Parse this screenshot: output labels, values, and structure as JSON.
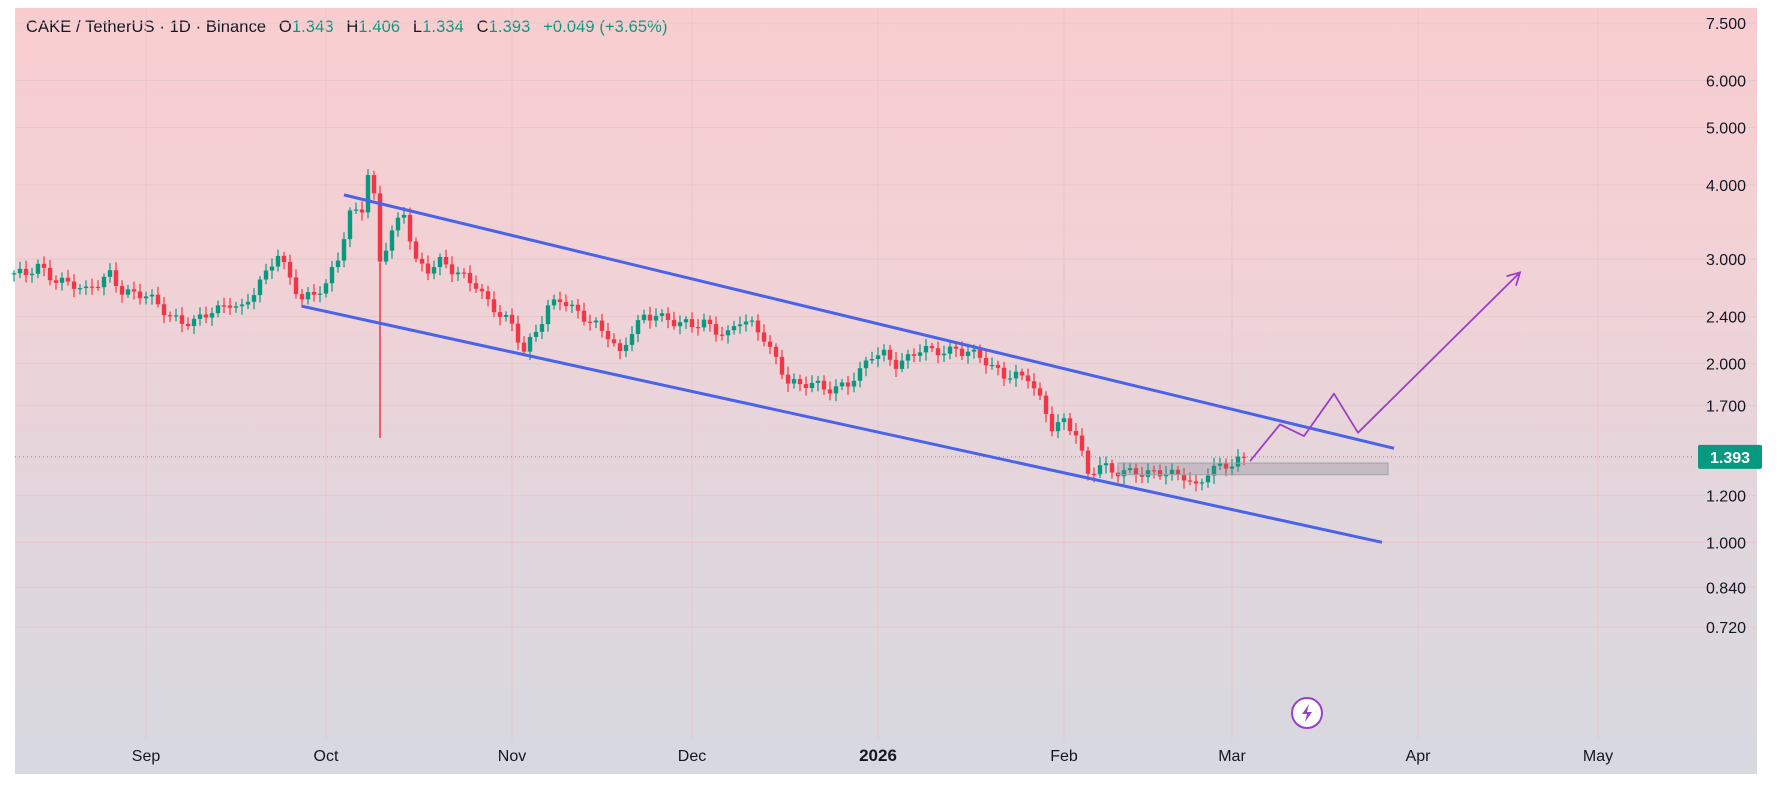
{
  "legend": {
    "symbol": "CAKE / TetherUS · 1D · Binance",
    "open_label": "O",
    "open_value": "1.343",
    "high_label": "H",
    "high_value": "1.406",
    "low_label": "L",
    "low_value": "1.334",
    "close_label": "C",
    "close_value": "1.393",
    "change": "+0.049 (+3.65%)"
  },
  "colors": {
    "up": "#089981",
    "down": "#f23645",
    "channel": "#4a63e8",
    "projection": "#9c3fc8",
    "price_tag": "#089981",
    "grid": "#e9c6ca"
  },
  "icons": {
    "flash": "lightning-bolt-icon"
  },
  "chart_data": {
    "type": "candlestick",
    "scale": "log",
    "ylim": [
      0.65,
      7.6
    ],
    "y_ticks": [
      "7.500",
      "6.000",
      "5.000",
      "4.000",
      "3.000",
      "2.400",
      "2.000",
      "1.700",
      "1.200",
      "1.000",
      "0.840",
      "0.720"
    ],
    "y_tick_values": [
      7.5,
      6.0,
      5.0,
      4.0,
      3.0,
      2.4,
      2.0,
      1.7,
      1.2,
      1.0,
      0.84,
      0.72
    ],
    "x_ticks": [
      "Sep",
      "Oct",
      "Nov",
      "Dec",
      "2026",
      "Feb",
      "Mar",
      "Apr",
      "May"
    ],
    "x_tick_dates": [
      "2025-09-01",
      "2025-10-01",
      "2025-11-01",
      "2025-12-01",
      "2026-01-01",
      "2026-02-01",
      "2026-03-01",
      "2026-04-01",
      "2026-05-01"
    ],
    "last_price": "1.393",
    "series_close": [
      [
        "2025-08-10",
        2.84
      ],
      [
        "2025-08-12",
        2.8
      ],
      [
        "2025-08-14",
        2.9
      ],
      [
        "2025-08-16",
        2.82
      ],
      [
        "2025-08-18",
        2.78
      ],
      [
        "2025-08-20",
        2.72
      ],
      [
        "2025-08-22",
        2.62
      ],
      [
        "2025-08-24",
        2.72
      ],
      [
        "2025-08-26",
        2.85
      ],
      [
        "2025-08-28",
        2.68
      ],
      [
        "2025-08-30",
        2.62
      ],
      [
        "2025-09-01",
        2.58
      ],
      [
        "2025-09-03",
        2.5
      ],
      [
        "2025-09-05",
        2.42
      ],
      [
        "2025-09-07",
        2.38
      ],
      [
        "2025-09-09",
        2.35
      ],
      [
        "2025-09-11",
        2.4
      ],
      [
        "2025-09-13",
        2.45
      ],
      [
        "2025-09-15",
        2.55
      ],
      [
        "2025-09-17",
        2.5
      ],
      [
        "2025-09-19",
        2.65
      ],
      [
        "2025-09-21",
        2.8
      ],
      [
        "2025-09-23",
        3.05
      ],
      [
        "2025-09-25",
        2.8
      ],
      [
        "2025-09-27",
        2.6
      ],
      [
        "2025-09-29",
        2.62
      ],
      [
        "2025-10-01",
        2.68
      ],
      [
        "2025-10-03",
        3.0
      ],
      [
        "2025-10-05",
        3.6
      ],
      [
        "2025-10-07",
        3.7
      ],
      [
        "2025-10-08",
        4.2
      ],
      [
        "2025-10-09",
        3.8
      ],
      [
        "2025-10-10",
        2.95
      ],
      [
        "2025-10-12",
        3.3
      ],
      [
        "2025-10-14",
        3.6
      ],
      [
        "2025-10-16",
        3.0
      ],
      [
        "2025-10-18",
        2.9
      ],
      [
        "2025-10-20",
        2.95
      ],
      [
        "2025-10-22",
        2.85
      ],
      [
        "2025-10-24",
        2.8
      ],
      [
        "2025-10-26",
        2.75
      ],
      [
        "2025-10-28",
        2.55
      ],
      [
        "2025-10-30",
        2.4
      ],
      [
        "2025-11-01",
        2.3
      ],
      [
        "2025-11-03",
        2.1
      ],
      [
        "2025-11-05",
        2.3
      ],
      [
        "2025-11-07",
        2.5
      ],
      [
        "2025-11-09",
        2.55
      ],
      [
        "2025-11-11",
        2.45
      ],
      [
        "2025-11-13",
        2.4
      ],
      [
        "2025-11-15",
        2.35
      ],
      [
        "2025-11-17",
        2.25
      ],
      [
        "2025-11-19",
        2.05
      ],
      [
        "2025-11-21",
        2.25
      ],
      [
        "2025-11-23",
        2.4
      ],
      [
        "2025-11-25",
        2.45
      ],
      [
        "2025-11-27",
        2.38
      ],
      [
        "2025-11-29",
        2.32
      ],
      [
        "2025-12-01",
        2.3
      ],
      [
        "2025-12-03",
        2.35
      ],
      [
        "2025-12-05",
        2.3
      ],
      [
        "2025-12-07",
        2.25
      ],
      [
        "2025-12-09",
        2.35
      ],
      [
        "2025-12-11",
        2.3
      ],
      [
        "2025-12-13",
        2.22
      ],
      [
        "2025-12-15",
        2.05
      ],
      [
        "2025-12-17",
        1.88
      ],
      [
        "2025-12-19",
        1.82
      ],
      [
        "2025-12-21",
        1.84
      ],
      [
        "2025-12-23",
        1.82
      ],
      [
        "2025-12-25",
        1.84
      ],
      [
        "2025-12-27",
        1.86
      ],
      [
        "2025-12-29",
        1.92
      ],
      [
        "2025-12-31",
        2.05
      ],
      [
        "2026-01-02",
        2.08
      ],
      [
        "2026-01-04",
        2.02
      ],
      [
        "2026-01-06",
        2.05
      ],
      [
        "2026-01-08",
        2.1
      ],
      [
        "2026-01-10",
        2.08
      ],
      [
        "2026-01-12",
        2.1
      ],
      [
        "2026-01-14",
        2.14
      ],
      [
        "2026-01-16",
        2.1
      ],
      [
        "2026-01-18",
        2.04
      ],
      [
        "2026-01-20",
        1.95
      ],
      [
        "2026-01-22",
        1.92
      ],
      [
        "2026-01-24",
        1.93
      ],
      [
        "2026-01-26",
        1.91
      ],
      [
        "2026-01-28",
        1.72
      ],
      [
        "2026-01-30",
        1.55
      ],
      [
        "2026-02-01",
        1.6
      ],
      [
        "2026-02-03",
        1.55
      ],
      [
        "2026-02-05",
        1.3
      ],
      [
        "2026-02-07",
        1.34
      ],
      [
        "2026-02-09",
        1.3
      ],
      [
        "2026-02-11",
        1.32
      ],
      [
        "2026-02-13",
        1.33
      ],
      [
        "2026-02-15",
        1.31
      ],
      [
        "2026-02-17",
        1.3
      ],
      [
        "2026-02-19",
        1.29
      ],
      [
        "2026-02-21",
        1.3
      ],
      [
        "2026-02-23",
        1.25
      ],
      [
        "2026-02-25",
        1.32
      ],
      [
        "2026-02-27",
        1.33
      ],
      [
        "2026-03-01",
        1.34
      ],
      [
        "2026-03-03",
        1.393
      ]
    ],
    "annotations": {
      "oct10_wick_low": 1.5,
      "channel_upper": [
        [
          "2025-10-04",
          3.85
        ],
        [
          "2026-03-28",
          1.44
        ]
      ],
      "channel_lower": [
        [
          "2025-09-27",
          2.5
        ],
        [
          "2026-03-26",
          1.0
        ]
      ],
      "support_zone": {
        "from": "2026-02-10",
        "to": "2026-03-27",
        "low": 1.3,
        "high": 1.36
      },
      "projection": [
        [
          "2026-03-04",
          1.37
        ],
        [
          "2026-03-09",
          1.58
        ],
        [
          "2026-03-13",
          1.51
        ],
        [
          "2026-03-18",
          1.78
        ],
        [
          "2026-03-22",
          1.53
        ],
        [
          "2026-04-18",
          2.85
        ]
      ]
    }
  }
}
